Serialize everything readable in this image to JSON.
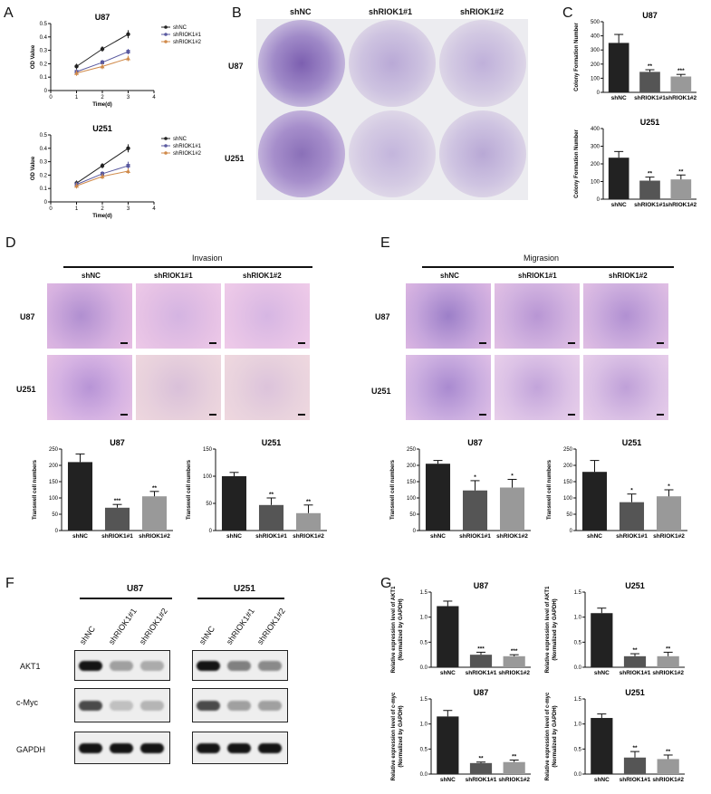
{
  "panel_letters": {
    "A": "A",
    "B": "B",
    "C": "C",
    "D": "D",
    "E": "E",
    "F": "F",
    "G": "G"
  },
  "panelA": {
    "x_label": "Time(d)",
    "y_label": "OD Value",
    "legend": [
      "shNC",
      "shRIOK1#1",
      "shRIOK1#2"
    ]
  },
  "panelB": {
    "col_labels": [
      "shNC",
      "shRIOK1#1",
      "shRIOK1#2"
    ],
    "row_labels": [
      "U87",
      "U251"
    ]
  },
  "panelD": {
    "header": "Invasion",
    "col_labels": [
      "shNC",
      "shRIOK1#1",
      "shRIOK1#2"
    ],
    "row_labels": [
      "U87",
      "U251"
    ]
  },
  "panelE": {
    "header": "Migrasion",
    "col_labels": [
      "shNC",
      "shRIOK1#1",
      "shRIOK1#2"
    ],
    "row_labels": [
      "U87",
      "U251"
    ]
  },
  "panelF": {
    "groups": [
      "U87",
      "U251"
    ],
    "lanes": [
      "shNC",
      "shRIOK1#1",
      "shRIOK1#2"
    ],
    "rows": [
      "AKT1",
      "c-Myc",
      "GAPDH"
    ],
    "band_intensity": {
      "U87": {
        "AKT1": [
          1.0,
          0.35,
          0.3
        ],
        "c-Myc": [
          0.75,
          0.2,
          0.25
        ],
        "GAPDH": [
          1.0,
          1.0,
          1.0
        ]
      },
      "U251": {
        "AKT1": [
          1.0,
          0.5,
          0.45
        ],
        "c-Myc": [
          0.75,
          0.35,
          0.35
        ],
        "GAPDH": [
          1.0,
          1.0,
          1.0
        ]
      }
    }
  },
  "colors": {
    "shNC": "#222222",
    "shRIOK1_1": "#555555",
    "shRIOK1_2": "#999999",
    "line_sh1": "#5a5aa0",
    "line_sh2": "#d08a4a",
    "stain": "#6a3fa8",
    "tissue": "#e9b6dc"
  },
  "chart_data": [
    {
      "id": "A1",
      "type": "line",
      "title": "U87",
      "xlabel": "Time(d)",
      "ylabel": "OD Value",
      "x": [
        1,
        2,
        3
      ],
      "xlim": [
        0,
        4
      ],
      "ylim": [
        0,
        0.5
      ],
      "xticks": [
        0,
        1,
        2,
        3,
        4
      ],
      "yticks": [
        0,
        0.1,
        0.2,
        0.3,
        0.4,
        0.5
      ],
      "series": [
        {
          "name": "shNC",
          "values": [
            0.18,
            0.31,
            0.42
          ],
          "err": [
            0.02,
            0.02,
            0.03
          ]
        },
        {
          "name": "shRIOK1#1",
          "values": [
            0.14,
            0.21,
            0.29
          ],
          "err": [
            0.02,
            0.02,
            0.02
          ]
        },
        {
          "name": "shRIOK1#2",
          "values": [
            0.13,
            0.18,
            0.24
          ],
          "err": [
            0.02,
            0.02,
            0.02
          ]
        }
      ]
    },
    {
      "id": "A2",
      "type": "line",
      "title": "U251",
      "xlabel": "Time(d)",
      "ylabel": "OD Value",
      "x": [
        1,
        2,
        3
      ],
      "xlim": [
        0,
        4
      ],
      "ylim": [
        0,
        0.5
      ],
      "xticks": [
        0,
        1,
        2,
        3,
        4
      ],
      "yticks": [
        0,
        0.1,
        0.2,
        0.3,
        0.4,
        0.5
      ],
      "series": [
        {
          "name": "shNC",
          "values": [
            0.14,
            0.27,
            0.4
          ],
          "err": [
            0.02,
            0.02,
            0.03
          ]
        },
        {
          "name": "shRIOK1#1",
          "values": [
            0.13,
            0.21,
            0.27
          ],
          "err": [
            0.02,
            0.02,
            0.03
          ]
        },
        {
          "name": "shRIOK1#2",
          "values": [
            0.12,
            0.19,
            0.23
          ],
          "err": [
            0.02,
            0.02,
            0.02
          ]
        }
      ]
    },
    {
      "id": "C1",
      "type": "bar",
      "title": "U87",
      "ylabel": "Colony Formation Number",
      "categories": [
        "shNC",
        "shRIOK1#1",
        "shRIOK1#2"
      ],
      "values": [
        350,
        145,
        112
      ],
      "err": [
        60,
        15,
        15
      ],
      "sig": [
        "",
        "**",
        "***"
      ],
      "ylim": [
        0,
        500
      ],
      "yticks": [
        0,
        100,
        200,
        300,
        400,
        500
      ]
    },
    {
      "id": "C2",
      "type": "bar",
      "title": "U251",
      "ylabel": "Colony Formation Number",
      "categories": [
        "shNC",
        "shRIOK1#1",
        "shRIOK1#2"
      ],
      "values": [
        235,
        105,
        112
      ],
      "err": [
        35,
        20,
        25
      ],
      "sig": [
        "",
        "**",
        "**"
      ],
      "ylim": [
        0,
        400
      ],
      "yticks": [
        0,
        100,
        200,
        300,
        400
      ]
    },
    {
      "id": "D1",
      "type": "bar",
      "title": "U87",
      "ylabel": "Transwell cell numbers",
      "categories": [
        "shNC",
        "shRIOK1#1",
        "shRIOK1#2"
      ],
      "values": [
        210,
        70,
        105
      ],
      "err": [
        25,
        10,
        15
      ],
      "sig": [
        "",
        "***",
        "**"
      ],
      "ylim": [
        0,
        250
      ],
      "yticks": [
        0,
        50,
        100,
        150,
        200,
        250
      ]
    },
    {
      "id": "D2",
      "type": "bar",
      "title": "U251",
      "ylabel": "Transwell cell numbers",
      "categories": [
        "shNC",
        "shRIOK1#1",
        "shRIOK1#2"
      ],
      "values": [
        100,
        47,
        32
      ],
      "err": [
        7,
        13,
        15
      ],
      "sig": [
        "",
        "**",
        "**"
      ],
      "ylim": [
        0,
        150
      ],
      "yticks": [
        0,
        50,
        100,
        150
      ]
    },
    {
      "id": "E1",
      "type": "bar",
      "title": "U87",
      "ylabel": "Transwell cell numbers",
      "categories": [
        "shNC",
        "shRIOK1#1",
        "shRIOK1#2"
      ],
      "values": [
        205,
        123,
        132
      ],
      "err": [
        10,
        30,
        25
      ],
      "sig": [
        "",
        "*",
        "*"
      ],
      "ylim": [
        0,
        250
      ],
      "yticks": [
        0,
        50,
        100,
        150,
        200,
        250
      ]
    },
    {
      "id": "E2",
      "type": "bar",
      "title": "U251",
      "ylabel": "Transwell cell numbers",
      "categories": [
        "shNC",
        "shRIOK1#1",
        "shRIOK1#2"
      ],
      "values": [
        180,
        87,
        105
      ],
      "err": [
        35,
        25,
        20
      ],
      "sig": [
        "",
        "*",
        "*"
      ],
      "ylim": [
        0,
        250
      ],
      "yticks": [
        0,
        50,
        100,
        150,
        200,
        250
      ]
    },
    {
      "id": "G1",
      "type": "bar",
      "title": "U87",
      "ylabel": "Relative expression level of AKT1|(Normalized by GAPDH)",
      "categories": [
        "shNC",
        "shRIOK1#1",
        "shRIOK1#2"
      ],
      "values": [
        1.22,
        0.25,
        0.22
      ],
      "err": [
        0.1,
        0.05,
        0.03
      ],
      "sig": [
        "",
        "***",
        "***"
      ],
      "ylim": [
        0,
        1.5
      ],
      "yticks": [
        0.0,
        0.5,
        1.0,
        1.5
      ]
    },
    {
      "id": "G2",
      "type": "bar",
      "title": "U251",
      "ylabel": "Relative expression level of AKT1|(Normalized by GAPDH)",
      "categories": [
        "shNC",
        "shRIOK1#1",
        "shRIOK1#2"
      ],
      "values": [
        1.08,
        0.22,
        0.22
      ],
      "err": [
        0.1,
        0.05,
        0.08
      ],
      "sig": [
        "",
        "**",
        "**"
      ],
      "ylim": [
        0,
        1.5
      ],
      "yticks": [
        0.0,
        0.5,
        1.0,
        1.5
      ]
    },
    {
      "id": "G3",
      "type": "bar",
      "title": "U87",
      "ylabel": "Relative expression level of c-myc|(Normalized by GAPDH)",
      "categories": [
        "shNC",
        "shRIOK1#1",
        "shRIOK1#2"
      ],
      "values": [
        1.15,
        0.22,
        0.24
      ],
      "err": [
        0.12,
        0.02,
        0.04
      ],
      "sig": [
        "",
        "**",
        "**"
      ],
      "ylim": [
        0,
        1.5
      ],
      "yticks": [
        0.0,
        0.5,
        1.0,
        1.5
      ]
    },
    {
      "id": "G4",
      "type": "bar",
      "title": "U251",
      "ylabel": "Relative expression level of c-myc|(Normalized by GAPDH)",
      "categories": [
        "shNC",
        "shRIOK1#1",
        "shRIOK1#2"
      ],
      "values": [
        1.12,
        0.33,
        0.3
      ],
      "err": [
        0.08,
        0.12,
        0.08
      ],
      "sig": [
        "",
        "**",
        "**"
      ],
      "ylim": [
        0,
        1.5
      ],
      "yticks": [
        0.0,
        0.5,
        1.0,
        1.5
      ]
    }
  ]
}
